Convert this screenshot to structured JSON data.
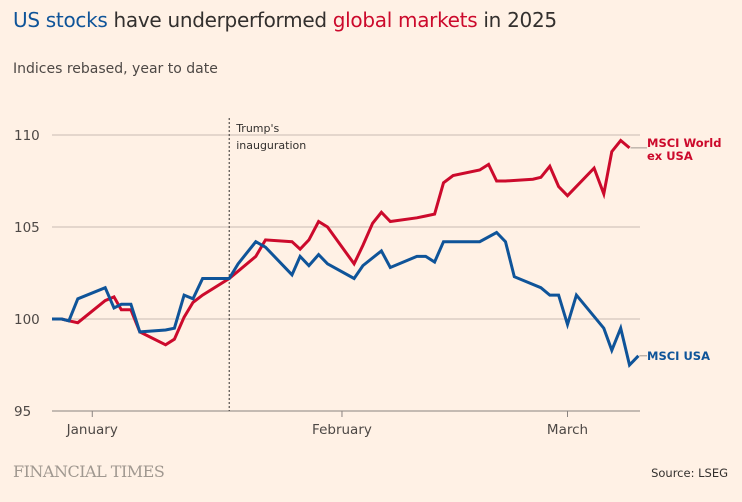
{
  "header": {
    "title_part1": "US stocks",
    "title_part2": " have underperformed ",
    "title_part3": "global markets",
    "title_part4": " in 2025",
    "subtitle": "Indices rebased, year to date"
  },
  "footer": {
    "logo": "FINANCIAL TIMES",
    "source": "Source: LSEG"
  },
  "colors": {
    "background": "#fff1e5",
    "us": "#0f5499",
    "world": "#cc0a2c",
    "grid": "#c9bcb2",
    "text": "#33302e"
  },
  "chart_data": {
    "type": "line",
    "title": "US stocks have underperformed global markets in 2025",
    "subtitle": "Indices rebased, year to date",
    "xlabel": "",
    "ylabel": "",
    "ylim": [
      95,
      110
    ],
    "yticks": [
      95,
      100,
      105,
      110
    ],
    "ytick_labels": [
      "95",
      "100",
      "105",
      "110"
    ],
    "x_range_days": [
      0,
      73
    ],
    "xticks": [
      {
        "label": "January",
        "day": 5
      },
      {
        "label": "February",
        "day": 36
      },
      {
        "label": "March",
        "day": 64
      }
    ],
    "grid": true,
    "annotation": {
      "label_line1": "Trump's",
      "label_line2": "inauguration",
      "day": 22
    },
    "series": [
      {
        "name": "MSCI World ex USA",
        "label_line1": "MSCI World",
        "label_line2": "ex USA",
        "color": "#cc0a2c",
        "days": [
          0,
          1.2,
          2.1,
          3.2,
          6.6,
          7.7,
          8.6,
          9.8,
          10.9,
          14.1,
          15.2,
          16.4,
          17.5,
          18.7,
          22,
          23.1,
          25.3,
          26.5,
          29.8,
          30.8,
          31.9,
          33.1,
          34.2,
          37.5,
          38.6,
          39.8,
          40.9,
          42,
          45.3,
          46.4,
          47.5,
          48.6,
          49.8,
          53.1,
          54.2,
          55.2,
          56.3,
          59.7,
          60.7,
          61.8,
          62.9,
          64,
          67.3,
          68.5,
          69.5,
          70.6,
          71.7
        ],
        "values": [
          100.0,
          100.0,
          99.9,
          99.8,
          101.0,
          101.2,
          100.5,
          100.5,
          99.3,
          98.6,
          98.9,
          100.1,
          100.9,
          101.3,
          102.2,
          102.6,
          103.4,
          104.3,
          104.2,
          103.8,
          104.3,
          105.3,
          105.0,
          103.0,
          104.0,
          105.2,
          105.8,
          105.3,
          105.5,
          105.6,
          105.7,
          107.4,
          107.8,
          108.1,
          108.4,
          107.5,
          107.5,
          107.6,
          107.7,
          108.3,
          107.2,
          106.7,
          108.2,
          106.8,
          109.1,
          109.7,
          109.3
        ]
      },
      {
        "name": "MSCI USA",
        "label_line1": "MSCI USA",
        "label_line2": "",
        "color": "#0f5499",
        "days": [
          0,
          1.2,
          2.1,
          3.2,
          6.6,
          7.7,
          8.6,
          9.8,
          10.9,
          14.1,
          15.2,
          16.4,
          17.5,
          18.7,
          22,
          23.1,
          25.3,
          26.5,
          29.8,
          30.8,
          31.9,
          33.1,
          34.2,
          37.5,
          38.6,
          40.9,
          42,
          45.3,
          46.4,
          47.5,
          48.6,
          53.1,
          55.2,
          56.3,
          57.4,
          60.7,
          61.8,
          62.9,
          64,
          65.1,
          68.5,
          69.5,
          70.6,
          71.7,
          72.8
        ],
        "values": [
          100.0,
          100.0,
          99.9,
          101.1,
          101.7,
          100.6,
          100.8,
          100.8,
          99.3,
          99.4,
          99.5,
          101.3,
          101.1,
          102.2,
          102.2,
          103.0,
          104.2,
          103.9,
          102.4,
          103.4,
          102.9,
          103.5,
          103.0,
          102.2,
          102.9,
          103.7,
          102.8,
          103.4,
          103.4,
          103.1,
          104.2,
          104.2,
          104.7,
          104.2,
          102.3,
          101.7,
          101.3,
          101.3,
          99.7,
          101.3,
          99.5,
          98.3,
          99.5,
          97.5,
          98.0
        ]
      }
    ]
  }
}
